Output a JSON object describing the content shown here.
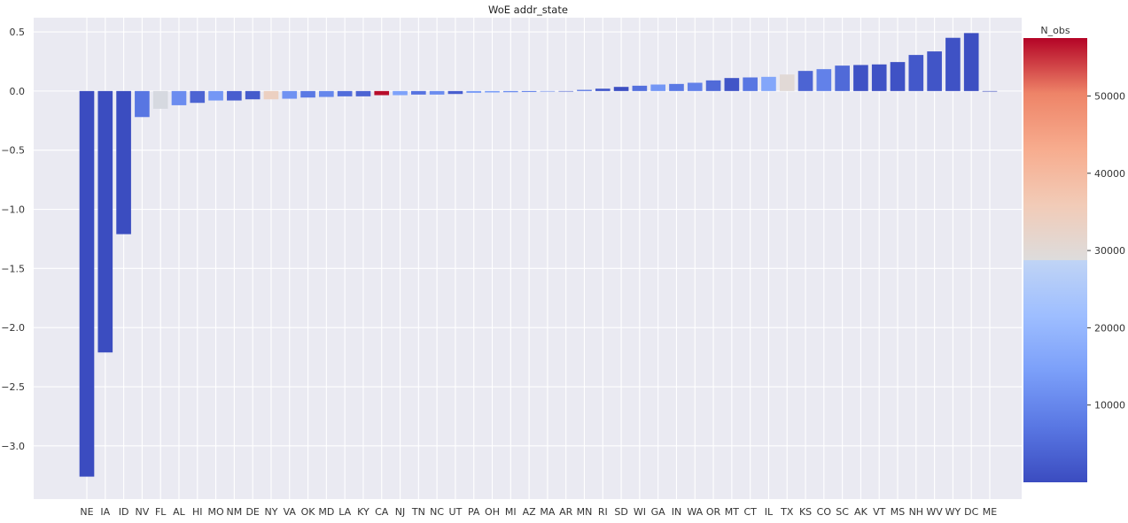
{
  "chart_data": {
    "type": "bar",
    "title": "WoE addr_state",
    "xlabel": "",
    "ylabel": "",
    "ylim": [
      -3.45,
      0.62
    ],
    "yticks": [
      0.5,
      0.0,
      -0.5,
      -1.0,
      -1.5,
      -2.0,
      -2.5,
      -3.0
    ],
    "ytick_labels": [
      "0.5",
      "0.0",
      "−0.5",
      "−1.0",
      "−1.5",
      "−2.0",
      "−2.5",
      "−3.0"
    ],
    "grid": true,
    "colormap": "coolwarm",
    "categories": [
      "NE",
      "IA",
      "ID",
      "NV",
      "FL",
      "AL",
      "HI",
      "MO",
      "NM",
      "DE",
      "NY",
      "VA",
      "OK",
      "MD",
      "LA",
      "KY",
      "CA",
      "NJ",
      "TN",
      "NC",
      "UT",
      "PA",
      "OH",
      "MI",
      "AZ",
      "MA",
      "AR",
      "MN",
      "RI",
      "SD",
      "WI",
      "GA",
      "IN",
      "WA",
      "OR",
      "MT",
      "CT",
      "IL",
      "TX",
      "KS",
      "CO",
      "SC",
      "AK",
      "VT",
      "MS",
      "NH",
      "WV",
      "WY",
      "DC",
      "ME"
    ],
    "values": [
      -3.26,
      -2.21,
      -1.21,
      -0.22,
      -0.15,
      -0.12,
      -0.1,
      -0.08,
      -0.08,
      -0.07,
      -0.07,
      -0.065,
      -0.055,
      -0.05,
      -0.045,
      -0.045,
      -0.035,
      -0.035,
      -0.03,
      -0.03,
      -0.025,
      -0.015,
      -0.012,
      -0.01,
      -0.008,
      -0.002,
      0.0,
      0.01,
      0.02,
      0.035,
      0.045,
      0.055,
      0.06,
      0.07,
      0.09,
      0.11,
      0.115,
      0.12,
      0.14,
      0.17,
      0.185,
      0.215,
      0.22,
      0.225,
      0.245,
      0.305,
      0.335,
      0.45,
      0.49,
      0.0
    ],
    "n_obs": [
      50,
      100,
      100,
      7000,
      28000,
      11000,
      4000,
      13000,
      3000,
      2500,
      34000,
      12000,
      7500,
      10000,
      5500,
      4000,
      57000,
      15000,
      6500,
      11000,
      3000,
      13500,
      14000,
      11000,
      9000,
      10000,
      3000,
      7000,
      2000,
      500,
      6000,
      13000,
      7500,
      9000,
      5000,
      1500,
      7000,
      16000,
      30000,
      4000,
      9000,
      5000,
      1000,
      1000,
      1000,
      2000,
      1500,
      1000,
      500,
      10
    ],
    "colorbar": {
      "label": "N_obs",
      "vmin": 0,
      "vmax": 57500,
      "ticks": [
        10000,
        20000,
        30000,
        40000,
        50000
      ],
      "tick_labels": [
        "10000",
        "20000",
        "30000",
        "40000",
        "50000"
      ]
    }
  }
}
